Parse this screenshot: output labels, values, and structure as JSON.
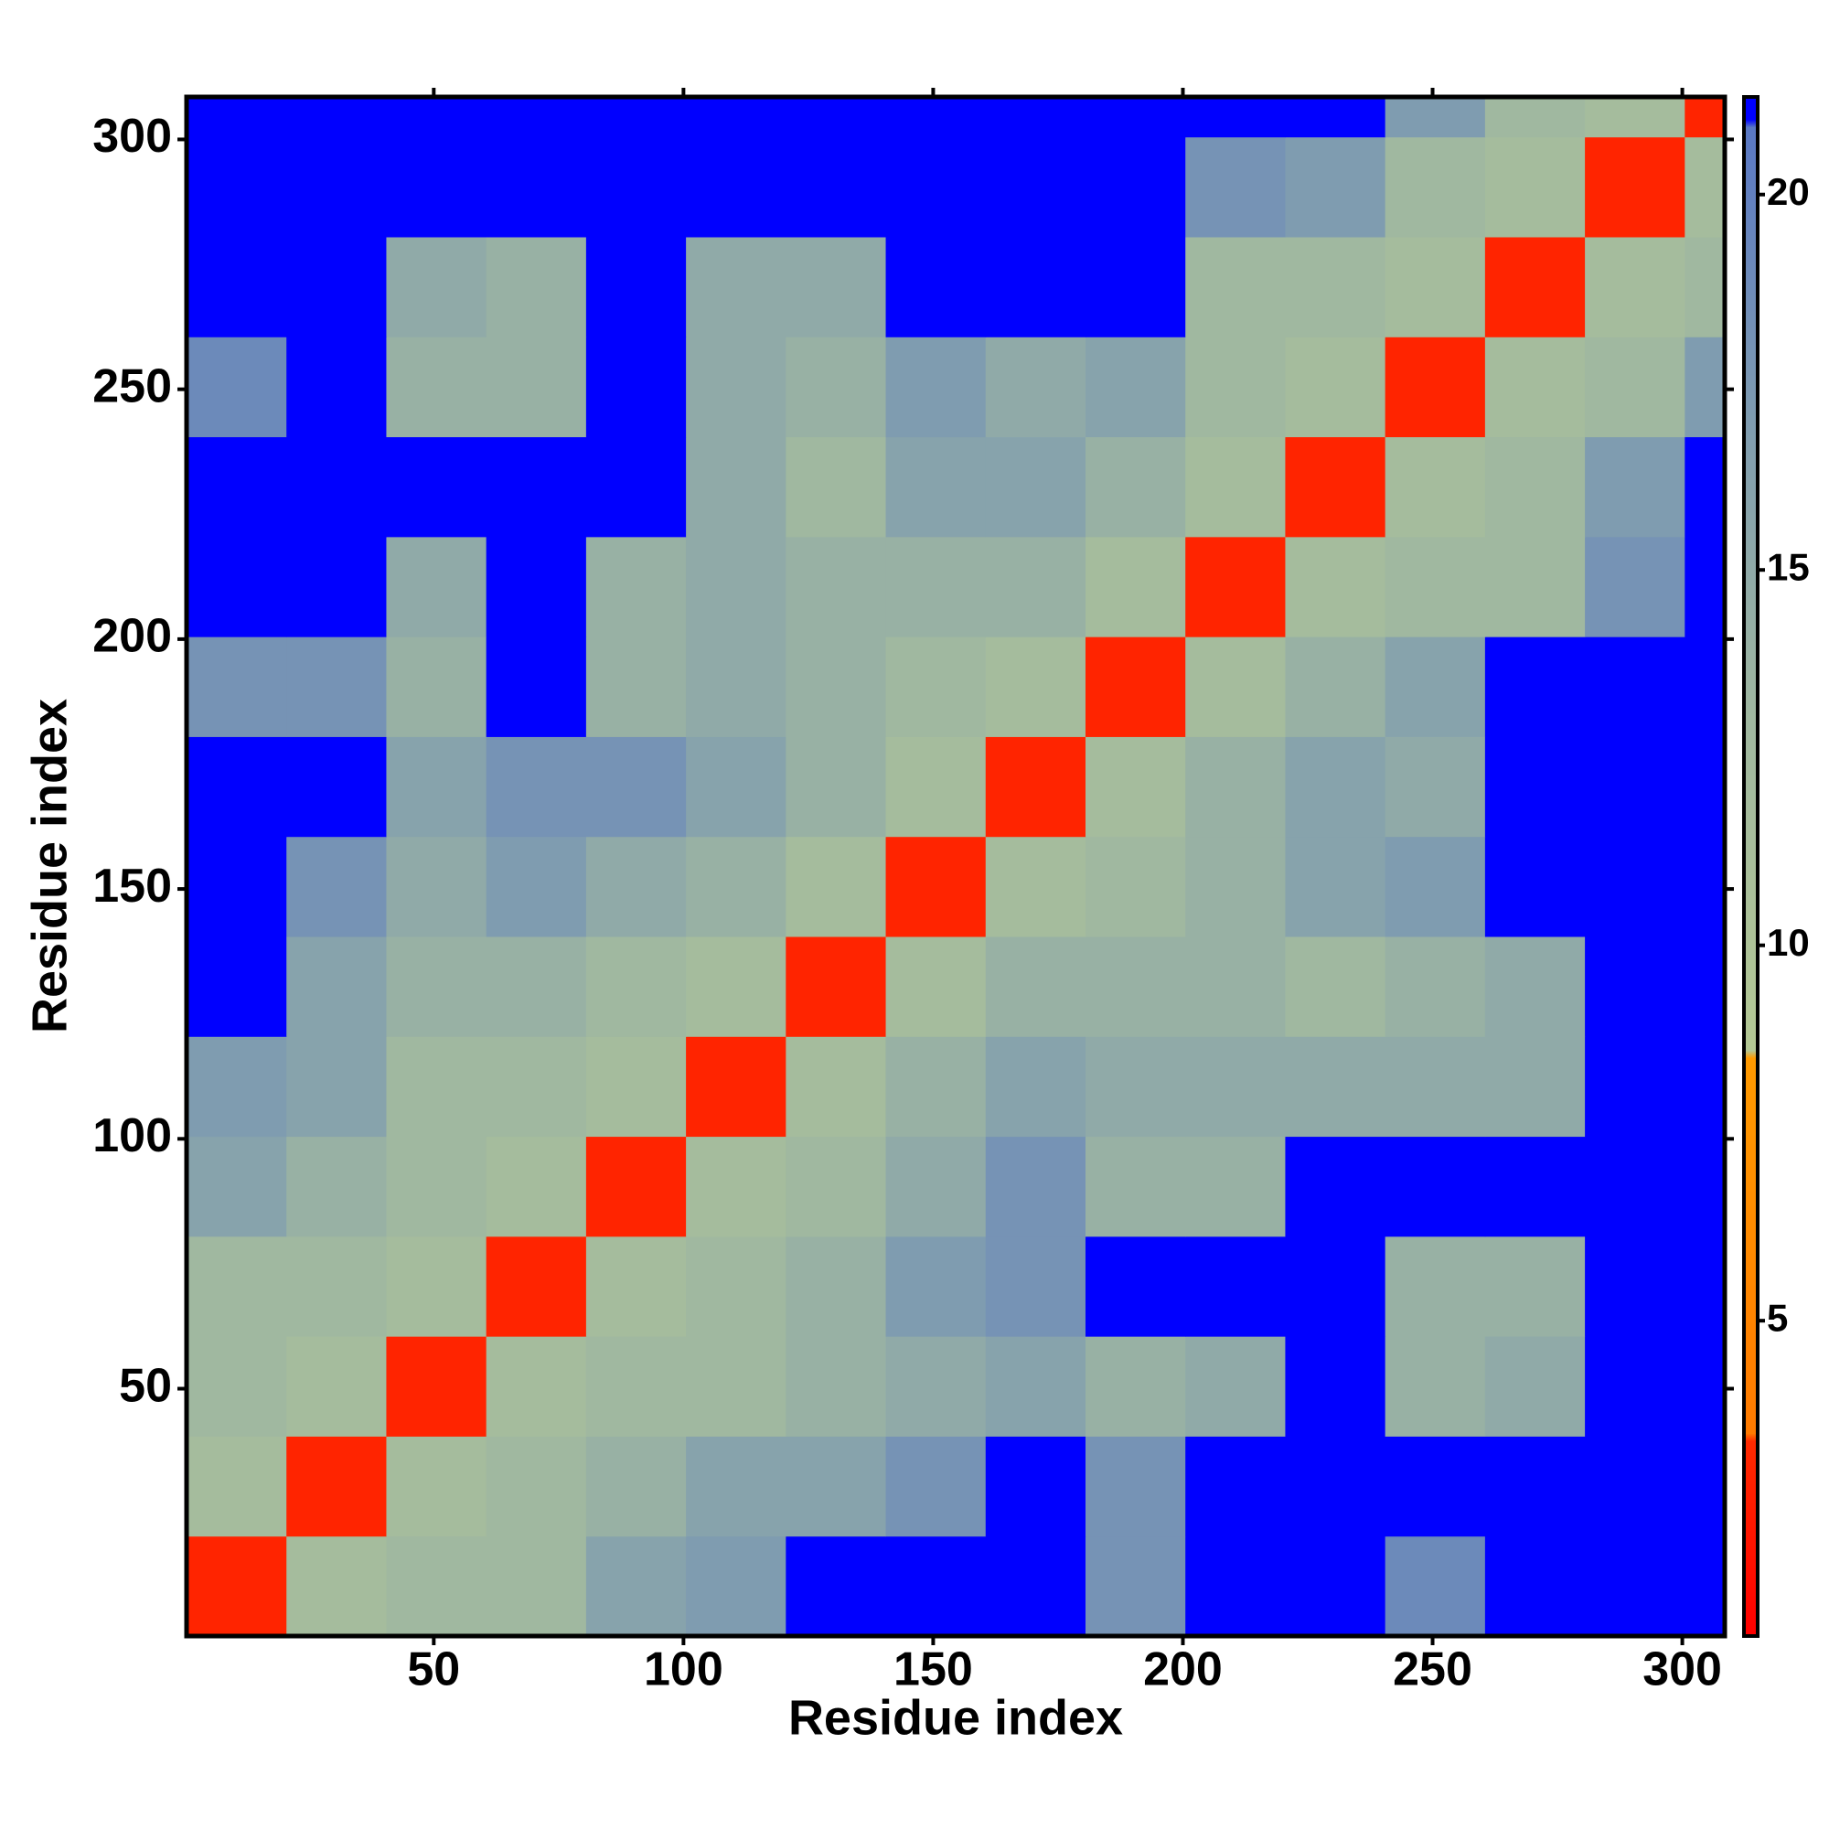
{
  "chart_data": {
    "type": "heatmap",
    "xlabel": "Residue index",
    "ylabel": "Residue index",
    "bins": [
      0.5,
      20.5,
      40.5,
      60.5,
      80.5,
      100.5,
      120.5,
      140.5,
      160.5,
      180.5,
      200.5,
      220.5,
      240.5,
      260.5,
      280.5,
      300.5,
      308.5
    ],
    "values": [
      [
        3,
        12,
        13,
        13,
        16,
        17,
        21,
        21,
        21,
        18,
        21,
        21,
        19,
        21,
        21,
        21
      ],
      [
        12,
        3,
        12,
        13,
        14,
        16,
        16,
        18,
        21,
        18,
        21,
        21,
        21,
        21,
        21,
        21
      ],
      [
        13,
        12,
        3,
        12,
        13,
        13,
        14,
        15,
        16,
        14,
        15,
        21,
        14,
        15,
        21,
        21
      ],
      [
        13,
        13,
        12,
        3,
        12,
        13,
        14,
        17,
        18,
        21,
        21,
        21,
        14,
        14,
        21,
        21
      ],
      [
        16,
        14,
        13,
        12,
        3,
        12,
        13,
        15,
        18,
        14,
        14,
        21,
        21,
        21,
        21,
        21
      ],
      [
        17,
        16,
        13,
        13,
        12,
        3,
        12,
        14,
        16,
        15,
        15,
        15,
        15,
        15,
        21,
        21
      ],
      [
        21,
        16,
        14,
        14,
        13,
        12,
        3,
        12,
        14,
        14,
        14,
        13,
        14,
        15,
        21,
        21
      ],
      [
        21,
        18,
        15,
        17,
        15,
        14,
        12,
        3,
        12,
        13,
        14,
        16,
        17,
        21,
        21,
        21
      ],
      [
        21,
        21,
        16,
        18,
        18,
        16,
        14,
        12,
        3,
        12,
        14,
        16,
        15,
        21,
        21,
        21
      ],
      [
        18,
        18,
        14,
        21,
        14,
        15,
        14,
        13,
        12,
        3,
        12,
        14,
        16,
        21,
        21,
        21
      ],
      [
        21,
        21,
        15,
        21,
        14,
        15,
        14,
        14,
        14,
        12,
        3,
        12,
        13,
        13,
        18,
        21
      ],
      [
        21,
        21,
        21,
        21,
        21,
        15,
        13,
        16,
        16,
        14,
        12,
        3,
        12,
        13,
        17,
        21
      ],
      [
        19,
        21,
        14,
        14,
        21,
        15,
        14,
        17,
        15,
        16,
        13,
        12,
        3,
        12,
        13,
        17
      ],
      [
        21,
        21,
        15,
        14,
        21,
        15,
        15,
        21,
        21,
        21,
        13,
        13,
        12,
        3,
        12,
        13
      ],
      [
        21,
        21,
        21,
        21,
        21,
        21,
        21,
        21,
        21,
        21,
        18,
        17,
        13,
        12,
        3,
        12
      ],
      [
        21,
        21,
        21,
        21,
        21,
        21,
        21,
        21,
        21,
        21,
        21,
        21,
        17,
        13,
        12,
        3
      ]
    ],
    "xlim": [
      0.5,
      308.5
    ],
    "xticks": [
      50,
      100,
      150,
      200,
      250,
      300
    ],
    "ylim": [
      0.5,
      308.5
    ],
    "yticks": [
      50,
      100,
      150,
      200,
      250,
      300
    ],
    "clim": [
      0.8,
      21.3
    ],
    "cticks": [
      5,
      10,
      15,
      20
    ],
    "colorscale": [
      [
        0.8,
        "#ff0000"
      ],
      [
        3.4,
        "#ff2a00"
      ],
      [
        3.5,
        "#ff7a00"
      ],
      [
        8.5,
        "#ff9a00"
      ],
      [
        8.6,
        "#b4c894"
      ],
      [
        13,
        "#a0b8a0"
      ],
      [
        17,
        "#7f9cb0"
      ],
      [
        20.9,
        "#5a78c4"
      ],
      [
        21,
        "#0000ff"
      ],
      [
        21.3,
        "#0000ff"
      ]
    ]
  }
}
